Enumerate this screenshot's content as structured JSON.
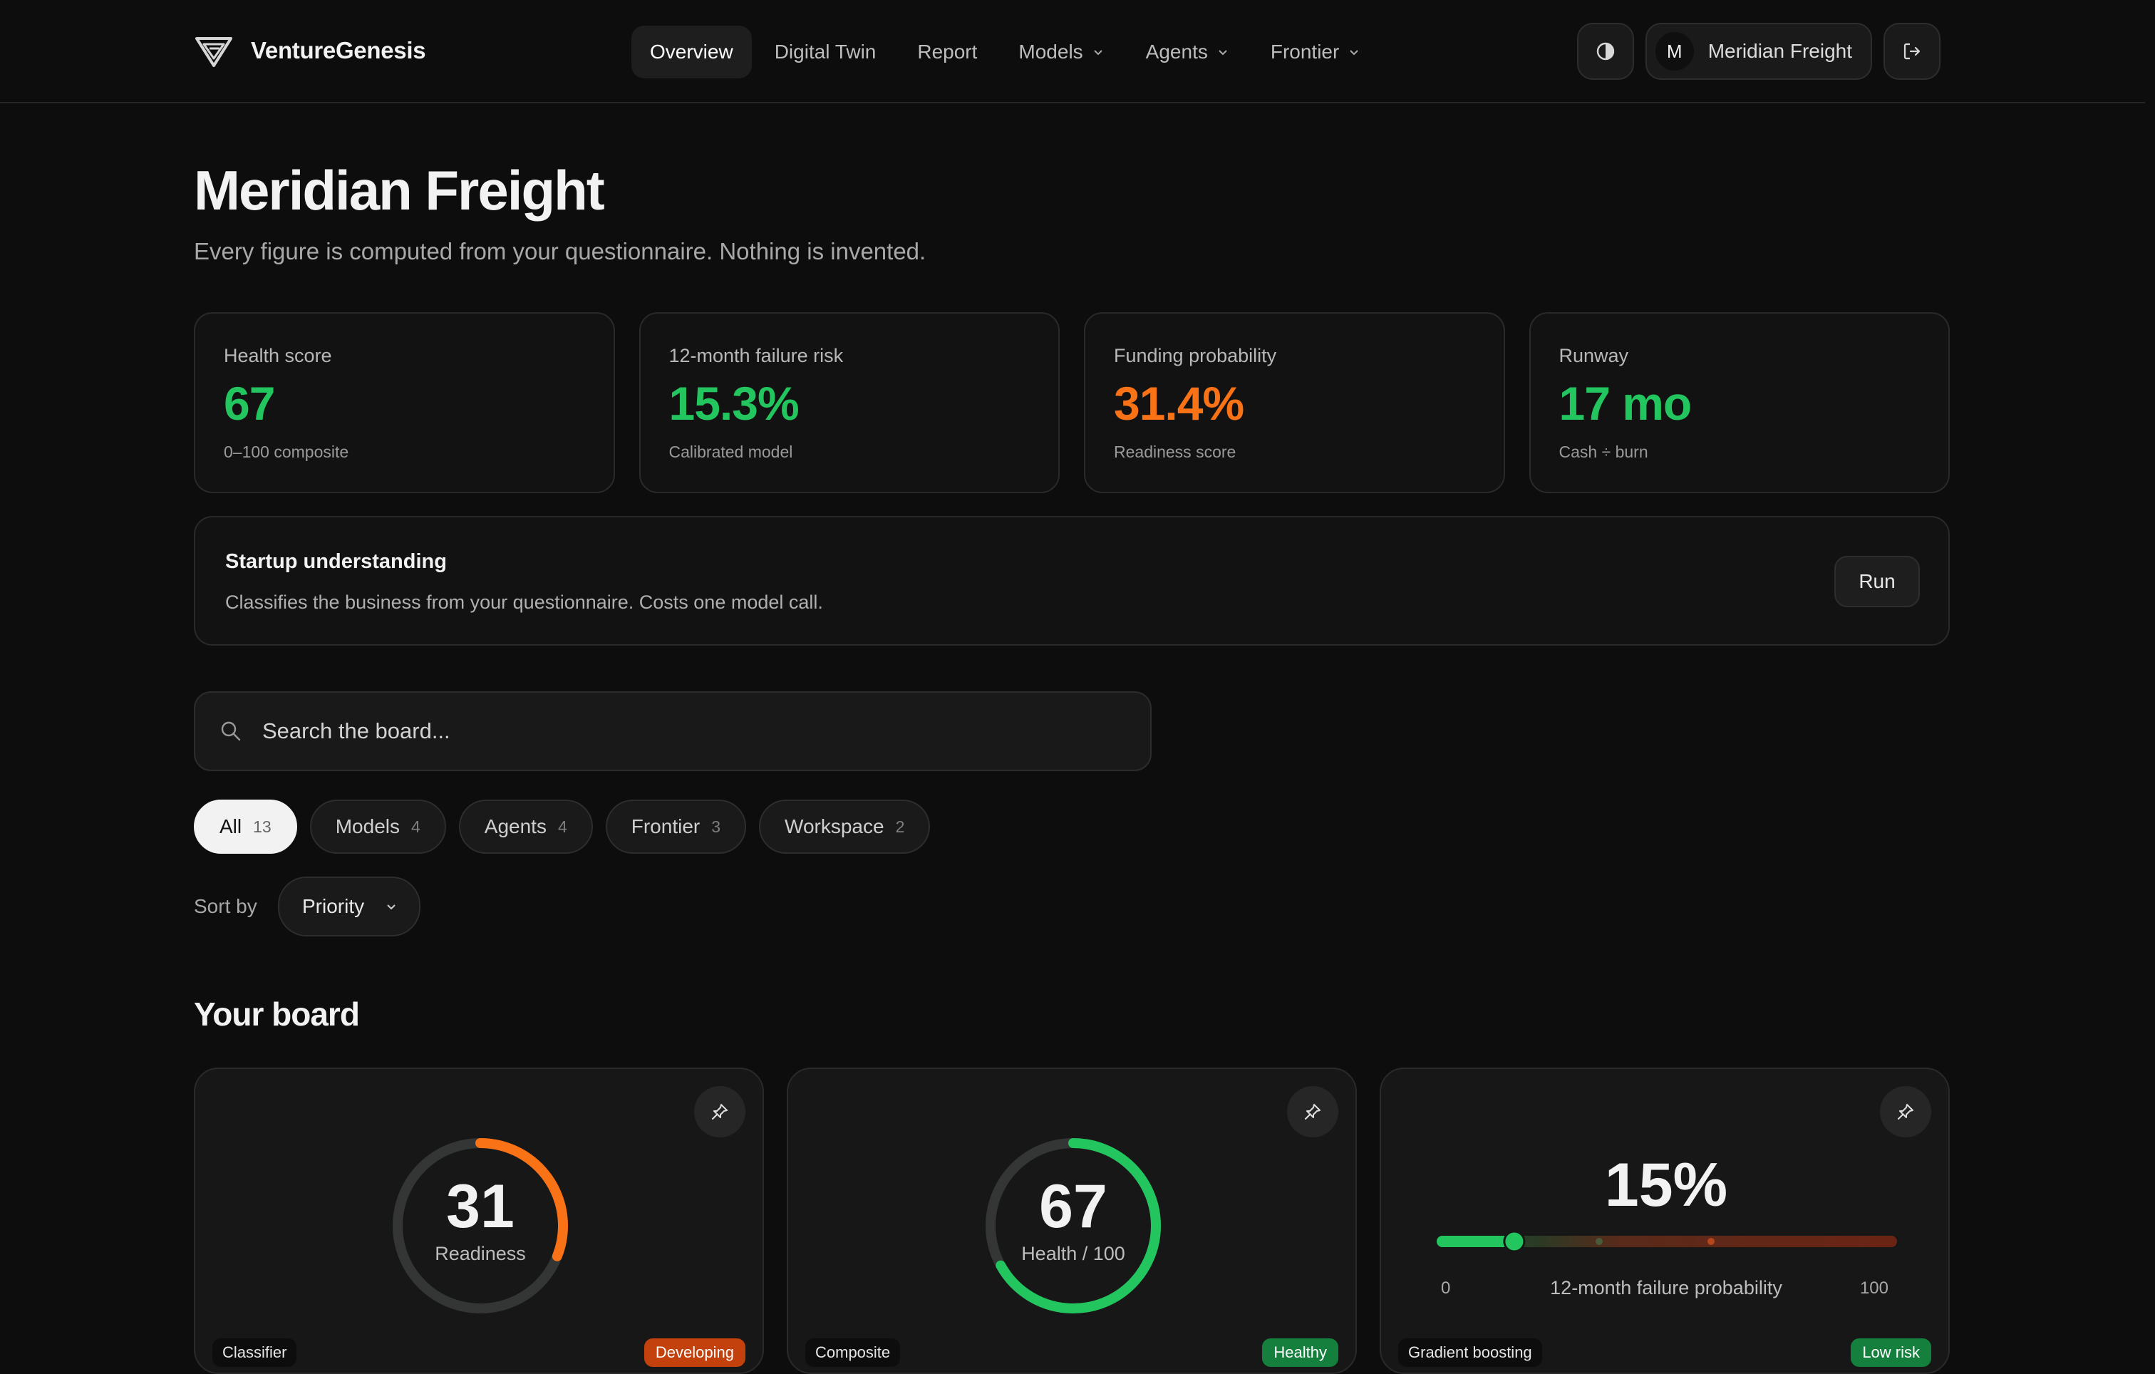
{
  "brand": {
    "name": "VentureGenesis"
  },
  "nav": {
    "items": [
      {
        "label": "Overview",
        "active": true,
        "dropdown": false
      },
      {
        "label": "Digital Twin",
        "active": false,
        "dropdown": false
      },
      {
        "label": "Report",
        "active": false,
        "dropdown": false
      },
      {
        "label": "Models",
        "active": false,
        "dropdown": true
      },
      {
        "label": "Agents",
        "active": false,
        "dropdown": true
      },
      {
        "label": "Frontier",
        "active": false,
        "dropdown": true
      }
    ]
  },
  "account": {
    "initial": "M",
    "name": "Meridian Freight"
  },
  "header": {
    "title": "Meridian Freight",
    "subtitle": "Every figure is computed from your questionnaire. Nothing is invented."
  },
  "stats": [
    {
      "label": "Health score",
      "value": "67",
      "note": "0–100 composite",
      "color": "#22c55e"
    },
    {
      "label": "12-month failure risk",
      "value": "15.3%",
      "note": "Calibrated model",
      "color": "#22c55e"
    },
    {
      "label": "Funding probability",
      "value": "31.4%",
      "note": "Readiness score",
      "color": "#f97316"
    },
    {
      "label": "Runway",
      "value": "17 mo",
      "note": "Cash ÷ burn",
      "color": "#22c55e"
    }
  ],
  "understanding": {
    "title": "Startup understanding",
    "description": "Classifies the business from your questionnaire. Costs one model call.",
    "run_label": "Run"
  },
  "search": {
    "placeholder": "Search the board...",
    "value": ""
  },
  "filters": [
    {
      "label": "All",
      "count": "13",
      "active": true
    },
    {
      "label": "Models",
      "count": "4",
      "active": false
    },
    {
      "label": "Agents",
      "count": "4",
      "active": false
    },
    {
      "label": "Frontier",
      "count": "3",
      "active": false
    },
    {
      "label": "Workspace",
      "count": "2",
      "active": false
    }
  ],
  "sort": {
    "label": "Sort by",
    "value": "Priority"
  },
  "board": {
    "title": "Your board",
    "tiles": [
      {
        "kind": "ring",
        "value": "31",
        "caption": "Readiness",
        "fraction": 0.31,
        "color": "#f97316",
        "tag_left": "Classifier",
        "tag_right": "Developing"
      },
      {
        "kind": "ring",
        "value": "67",
        "caption": "Health / 100",
        "fraction": 0.67,
        "color": "#22c55e",
        "tag_left": "Composite",
        "tag_right": "Healthy"
      },
      {
        "kind": "risk",
        "value": "15%",
        "fraction": 0.15,
        "caption": "12-month failure probability",
        "min": "0",
        "max": "100",
        "tag_left": "Gradient boosting",
        "tag_right": "Low risk"
      }
    ]
  },
  "colors": {
    "accent_green": "#22c55e",
    "accent_orange": "#f97316",
    "risk_red": "#7c2d12"
  }
}
